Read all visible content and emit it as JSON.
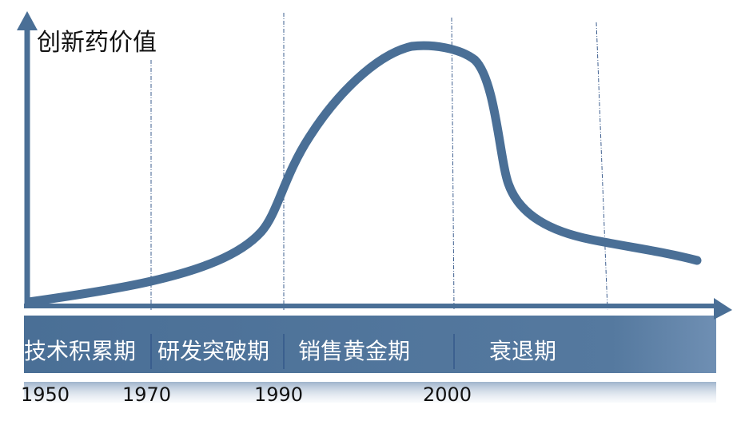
{
  "diagram": {
    "y_axis_label": "创新药价值",
    "phases": [
      {
        "label": "技术积累期"
      },
      {
        "label": "研发突破期"
      },
      {
        "label": "销售黄金期"
      },
      {
        "label": "衰退期"
      }
    ],
    "years": [
      "1950",
      "1970",
      "1990",
      "2000"
    ]
  },
  "colors": {
    "axis": "#4a6f96",
    "curve": "#4a6f96",
    "band": "#4a6f96",
    "phase_text": "#ffffff",
    "divider": "#34588a"
  }
}
